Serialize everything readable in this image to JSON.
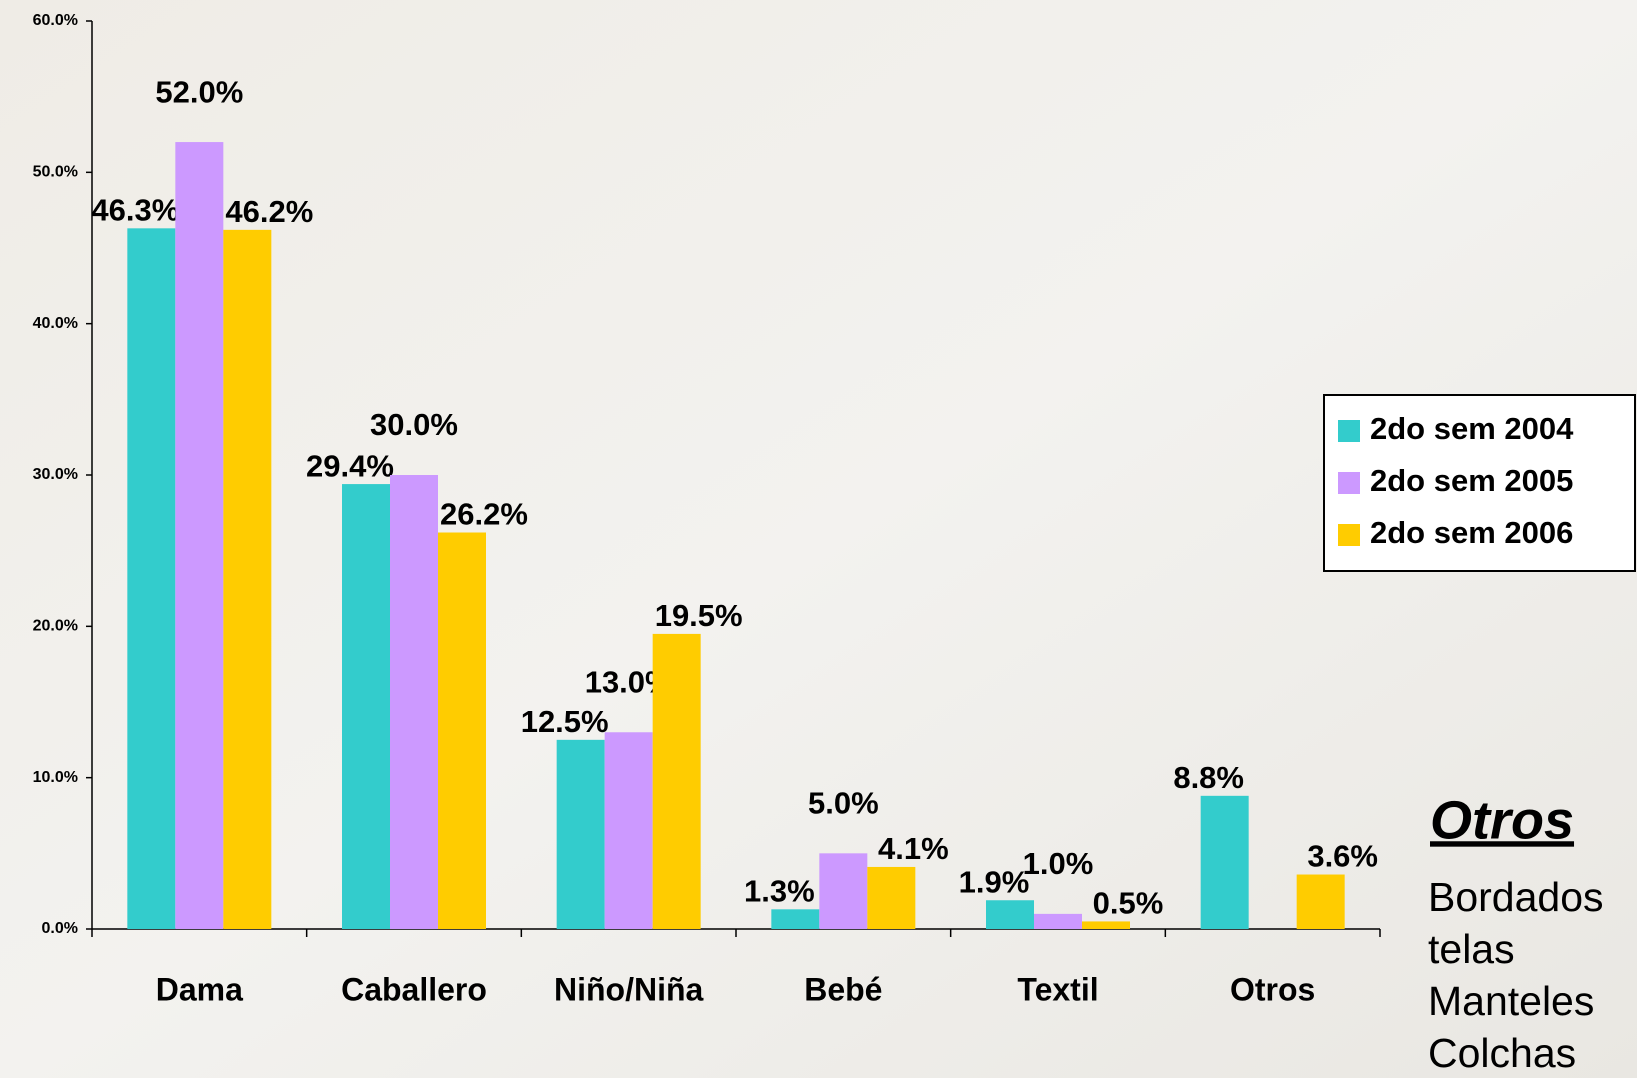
{
  "chart_data": {
    "type": "bar",
    "categories": [
      "Dama",
      "Caballero",
      "Niño/Niña",
      "Bebé",
      "Textil",
      "Otros"
    ],
    "series": [
      {
        "name": "2do sem 2004",
        "color": "#33cccc",
        "values": [
          46.3,
          29.4,
          12.5,
          1.3,
          1.9,
          8.8
        ],
        "value_labels": [
          "46.3%",
          "29.4%",
          "12.5%",
          "1.3%",
          "1.9%",
          "8.8%"
        ]
      },
      {
        "name": "2do sem 2005",
        "color": "#cc99ff",
        "values": [
          52.0,
          30.0,
          13.0,
          5.0,
          1.0,
          null
        ],
        "value_labels": [
          "52.0%",
          "30.0%",
          "13.0%",
          "5.0%",
          "1.0%",
          null
        ]
      },
      {
        "name": "2do sem 2006",
        "color": "#ffcc00",
        "values": [
          46.2,
          26.2,
          19.5,
          4.1,
          0.5,
          3.6
        ],
        "value_labels": [
          "46.2%",
          "26.2%",
          "19.5%",
          "4.1%",
          "0.5%",
          "3.6%"
        ]
      }
    ],
    "ylim": [
      0,
      60
    ],
    "yticks": [
      {
        "value": 0,
        "label": "0.0%"
      },
      {
        "value": 10,
        "label": "10.0%"
      },
      {
        "value": 20,
        "label": "20.0%"
      },
      {
        "value": 30,
        "label": "30.0%"
      },
      {
        "value": 40,
        "label": "40.0%"
      },
      {
        "value": 50,
        "label": "50.0%"
      },
      {
        "value": 60,
        "label": "60.0%"
      }
    ],
    "legend": "right",
    "side_note": {
      "title": "Otros",
      "lines": [
        "Bordados",
        "telas",
        "Manteles",
        "Colchas"
      ]
    }
  }
}
